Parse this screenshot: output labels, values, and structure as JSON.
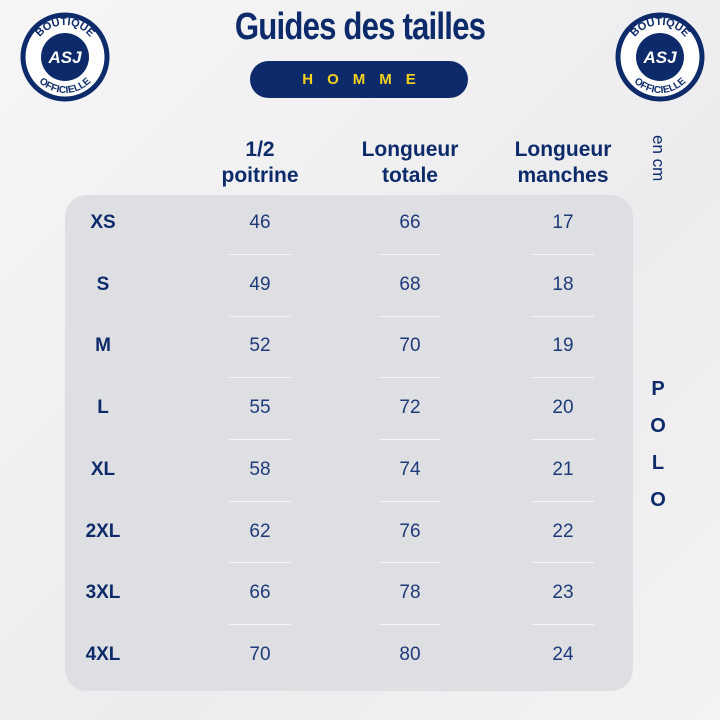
{
  "header": {
    "title": "Guides des tailles",
    "subtitle": "HOMME"
  },
  "logo": {
    "top": "BOUTIQUE",
    "bottom": "OFFICIELLE",
    "center": "ASJ"
  },
  "unit": "en cm",
  "product": "POLO",
  "table": {
    "columns": [
      [
        "1/2",
        "poitrine"
      ],
      [
        "Longueur",
        "totale"
      ],
      [
        "Longueur",
        "manches"
      ]
    ],
    "rows": [
      [
        "XS",
        46,
        66,
        17
      ],
      [
        "S",
        49,
        68,
        18
      ],
      [
        "M",
        52,
        70,
        19
      ],
      [
        "L",
        55,
        72,
        20
      ],
      [
        "XL",
        58,
        74,
        21
      ],
      [
        "2XL",
        62,
        76,
        22
      ],
      [
        "3XL",
        66,
        78,
        23
      ],
      [
        "4XL",
        70,
        80,
        24
      ]
    ]
  }
}
